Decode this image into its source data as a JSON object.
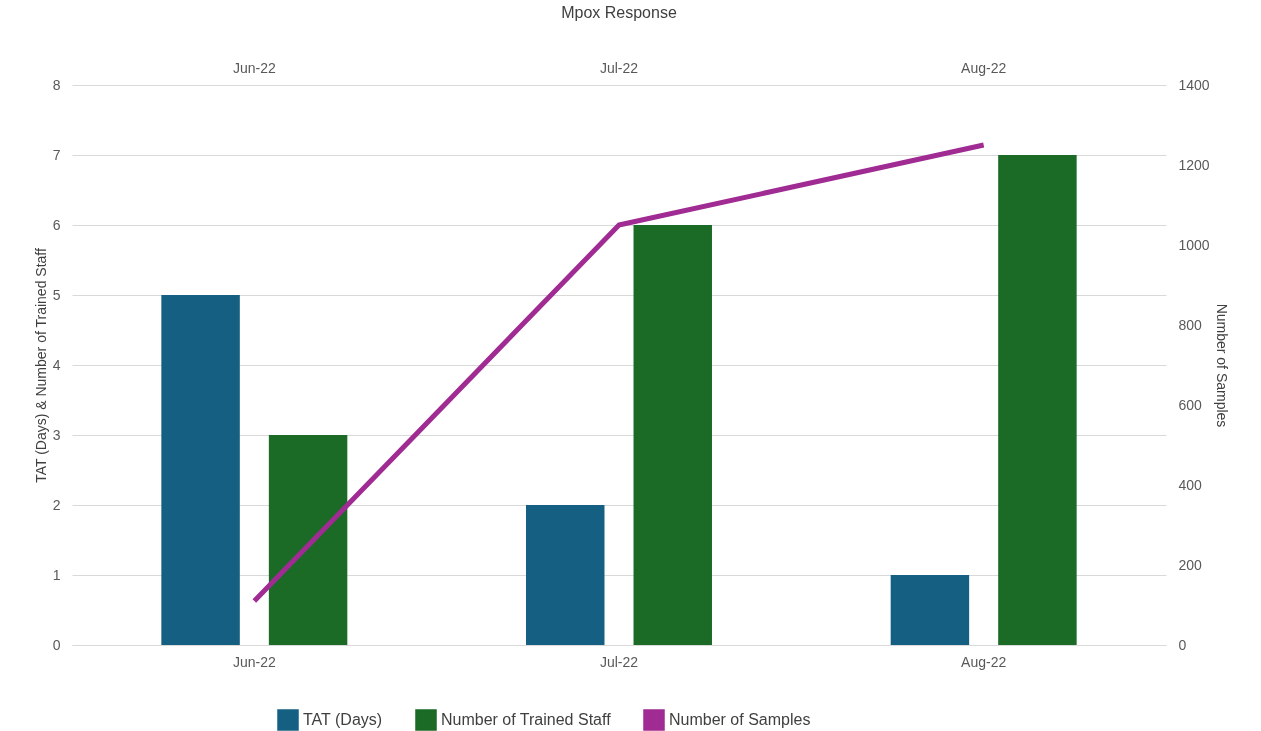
{
  "chart_data": {
    "type": "bar",
    "title": "Mpox Response",
    "categories": [
      "Jun-22",
      "Jul-22",
      "Aug-22"
    ],
    "ylabel": "TAT (Days) & Number of Trained Staff",
    "y2label": "Number of Samples",
    "ylim": [
      0,
      8
    ],
    "yticks": [
      0,
      1,
      2,
      3,
      4,
      5,
      6,
      7,
      8
    ],
    "y2lim": [
      0,
      1400
    ],
    "y2ticks": [
      0,
      200,
      400,
      600,
      800,
      1000,
      1200,
      1400
    ],
    "grid": "y",
    "legend": "bottom",
    "marker": "none",
    "line_style": "solid",
    "series": [
      {
        "name": "TAT (Days)",
        "color": "#156082",
        "values": [
          5,
          2,
          1
        ]
      },
      {
        "name": "Number of Trained Staff",
        "color": "#1b6b27",
        "values": [
          3,
          6,
          7
        ]
      },
      {
        "name": "Number of Samples",
        "type": "line",
        "axis": "y2",
        "color": "#a02b93",
        "values": [
          110,
          1050,
          1250
        ]
      }
    ]
  }
}
